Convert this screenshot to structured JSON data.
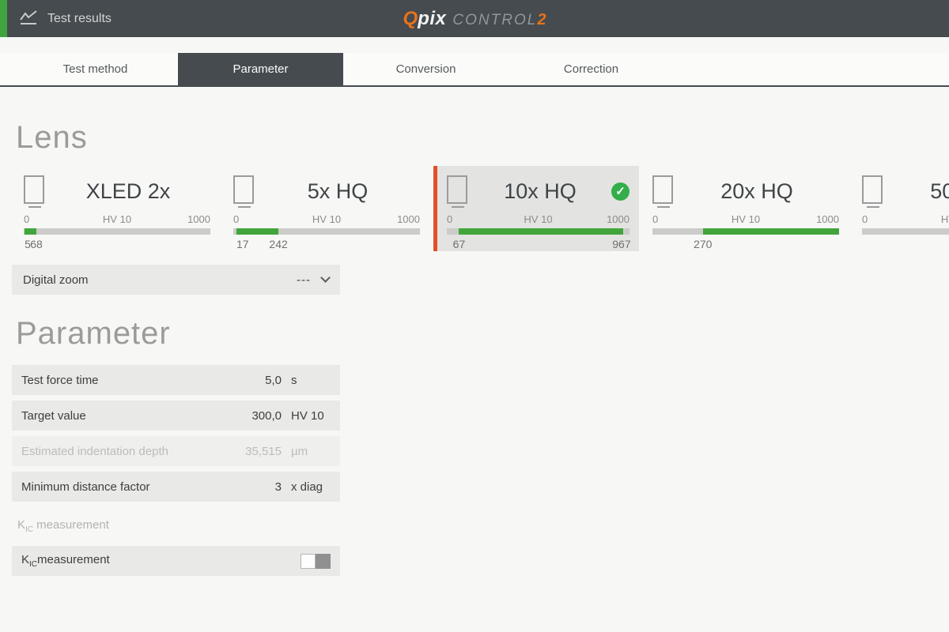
{
  "colors": {
    "header_bg": "#454b4e",
    "accent_green": "#3fa43d",
    "bar_green": "#42a53c",
    "check_green": "#33ae4b",
    "accent_orange": "#e8731a",
    "selected_border": "#e0512a",
    "row_bg": "#e9e9e7",
    "page_bg": "#f7f7f5"
  },
  "header": {
    "title": "Test results",
    "logo_q": "Q",
    "logo_pix": "pix",
    "logo_control": "CONTROL",
    "logo_two": "2"
  },
  "tabs": [
    {
      "label": "Test method",
      "active": false
    },
    {
      "label": "Parameter",
      "active": true
    },
    {
      "label": "Conversion",
      "active": false
    },
    {
      "label": "Correction",
      "active": false
    }
  ],
  "lens": {
    "section_title": "Lens",
    "scale": {
      "min": "0",
      "mid": "HV 10",
      "max": "1000",
      "numeric_max": 1000
    },
    "cards": [
      {
        "name": "XLED 2x",
        "selected": false,
        "bar_min": 5,
        "bar_max": 68,
        "min_label": "5",
        "max_label": "68"
      },
      {
        "name": "5x HQ",
        "selected": false,
        "bar_min": 17,
        "bar_max": 242,
        "min_label": "17",
        "max_label": "242"
      },
      {
        "name": "10x HQ",
        "selected": true,
        "bar_min": 67,
        "bar_max": 967,
        "min_label": "67",
        "max_label": "967"
      },
      {
        "name": "20x HQ",
        "selected": false,
        "bar_min": 270,
        "bar_max": 1000,
        "min_label": "270",
        "max_label": ""
      },
      {
        "name": "50x HQ",
        "selected": false,
        "bar_min": null,
        "bar_max": null,
        "min_label": "",
        "max_label": ""
      }
    ],
    "check_glyph": "✓"
  },
  "digital_zoom": {
    "label": "Digital zoom",
    "value": "---"
  },
  "parameters": {
    "section_title": "Parameter",
    "rows": [
      {
        "label": "Test force time",
        "value": "5,0",
        "unit": "s",
        "disabled": false
      },
      {
        "label": "Target value",
        "value": "300,0",
        "unit": "HV 10",
        "disabled": false
      },
      {
        "label": "Estimated indentation depth",
        "value": "35,515",
        "unit": "µm",
        "disabled": true
      },
      {
        "label": "Minimum distance factor",
        "value": "3",
        "unit": "x diag",
        "disabled": false
      }
    ]
  },
  "kic": {
    "section_k": "K",
    "section_sub": "IC",
    "section_rest": " measurement",
    "row_k": "K",
    "row_sub": "IC",
    "row_rest": "measurement",
    "toggle_on": false
  }
}
